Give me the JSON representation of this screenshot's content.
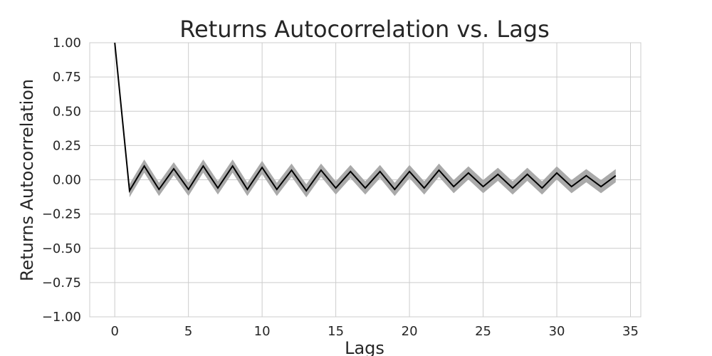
{
  "chart_data": {
    "type": "line",
    "title": "Returns Autocorrelation vs. Lags",
    "xlabel": "Lags",
    "ylabel": "Returns Autocorrelation",
    "xlim": [
      -1.7,
      35.7
    ],
    "ylim": [
      -1.0,
      1.0
    ],
    "xticks": [
      0,
      5,
      10,
      15,
      20,
      25,
      30,
      35
    ],
    "yticks": [
      1.0,
      0.75,
      0.5,
      0.25,
      0.0,
      -0.25,
      -0.5,
      -0.75,
      -1.0
    ],
    "xtick_labels": [
      "0",
      "5",
      "10",
      "15",
      "20",
      "25",
      "30",
      "35"
    ],
    "ytick_labels": [
      "1.00",
      "0.75",
      "0.50",
      "0.25",
      "0.00",
      "−0.25",
      "−0.50",
      "−0.75",
      "−1.00"
    ],
    "grid": true,
    "colors": {
      "line": "#000000",
      "band": "#aaaaaa",
      "grid": "#cccccc",
      "text": "#262626"
    },
    "series": [
      {
        "x": [
          0,
          1,
          2,
          3,
          4,
          5,
          6,
          7,
          8,
          9,
          10,
          11,
          12,
          13,
          14,
          15,
          16,
          17,
          18,
          19,
          20,
          21,
          22,
          23,
          24,
          25,
          26,
          27,
          28,
          29,
          30,
          31,
          32,
          33,
          34
        ],
        "values": [
          1.0,
          -0.08,
          0.1,
          -0.07,
          0.08,
          -0.07,
          0.1,
          -0.06,
          0.1,
          -0.07,
          0.09,
          -0.07,
          0.07,
          -0.08,
          0.07,
          -0.06,
          0.06,
          -0.06,
          0.06,
          -0.07,
          0.06,
          -0.06,
          0.07,
          -0.05,
          0.05,
          -0.05,
          0.04,
          -0.06,
          0.04,
          -0.06,
          0.05,
          -0.05,
          0.03,
          -0.05,
          0.03
        ],
        "band_halfwidth": 0.048
      }
    ]
  }
}
